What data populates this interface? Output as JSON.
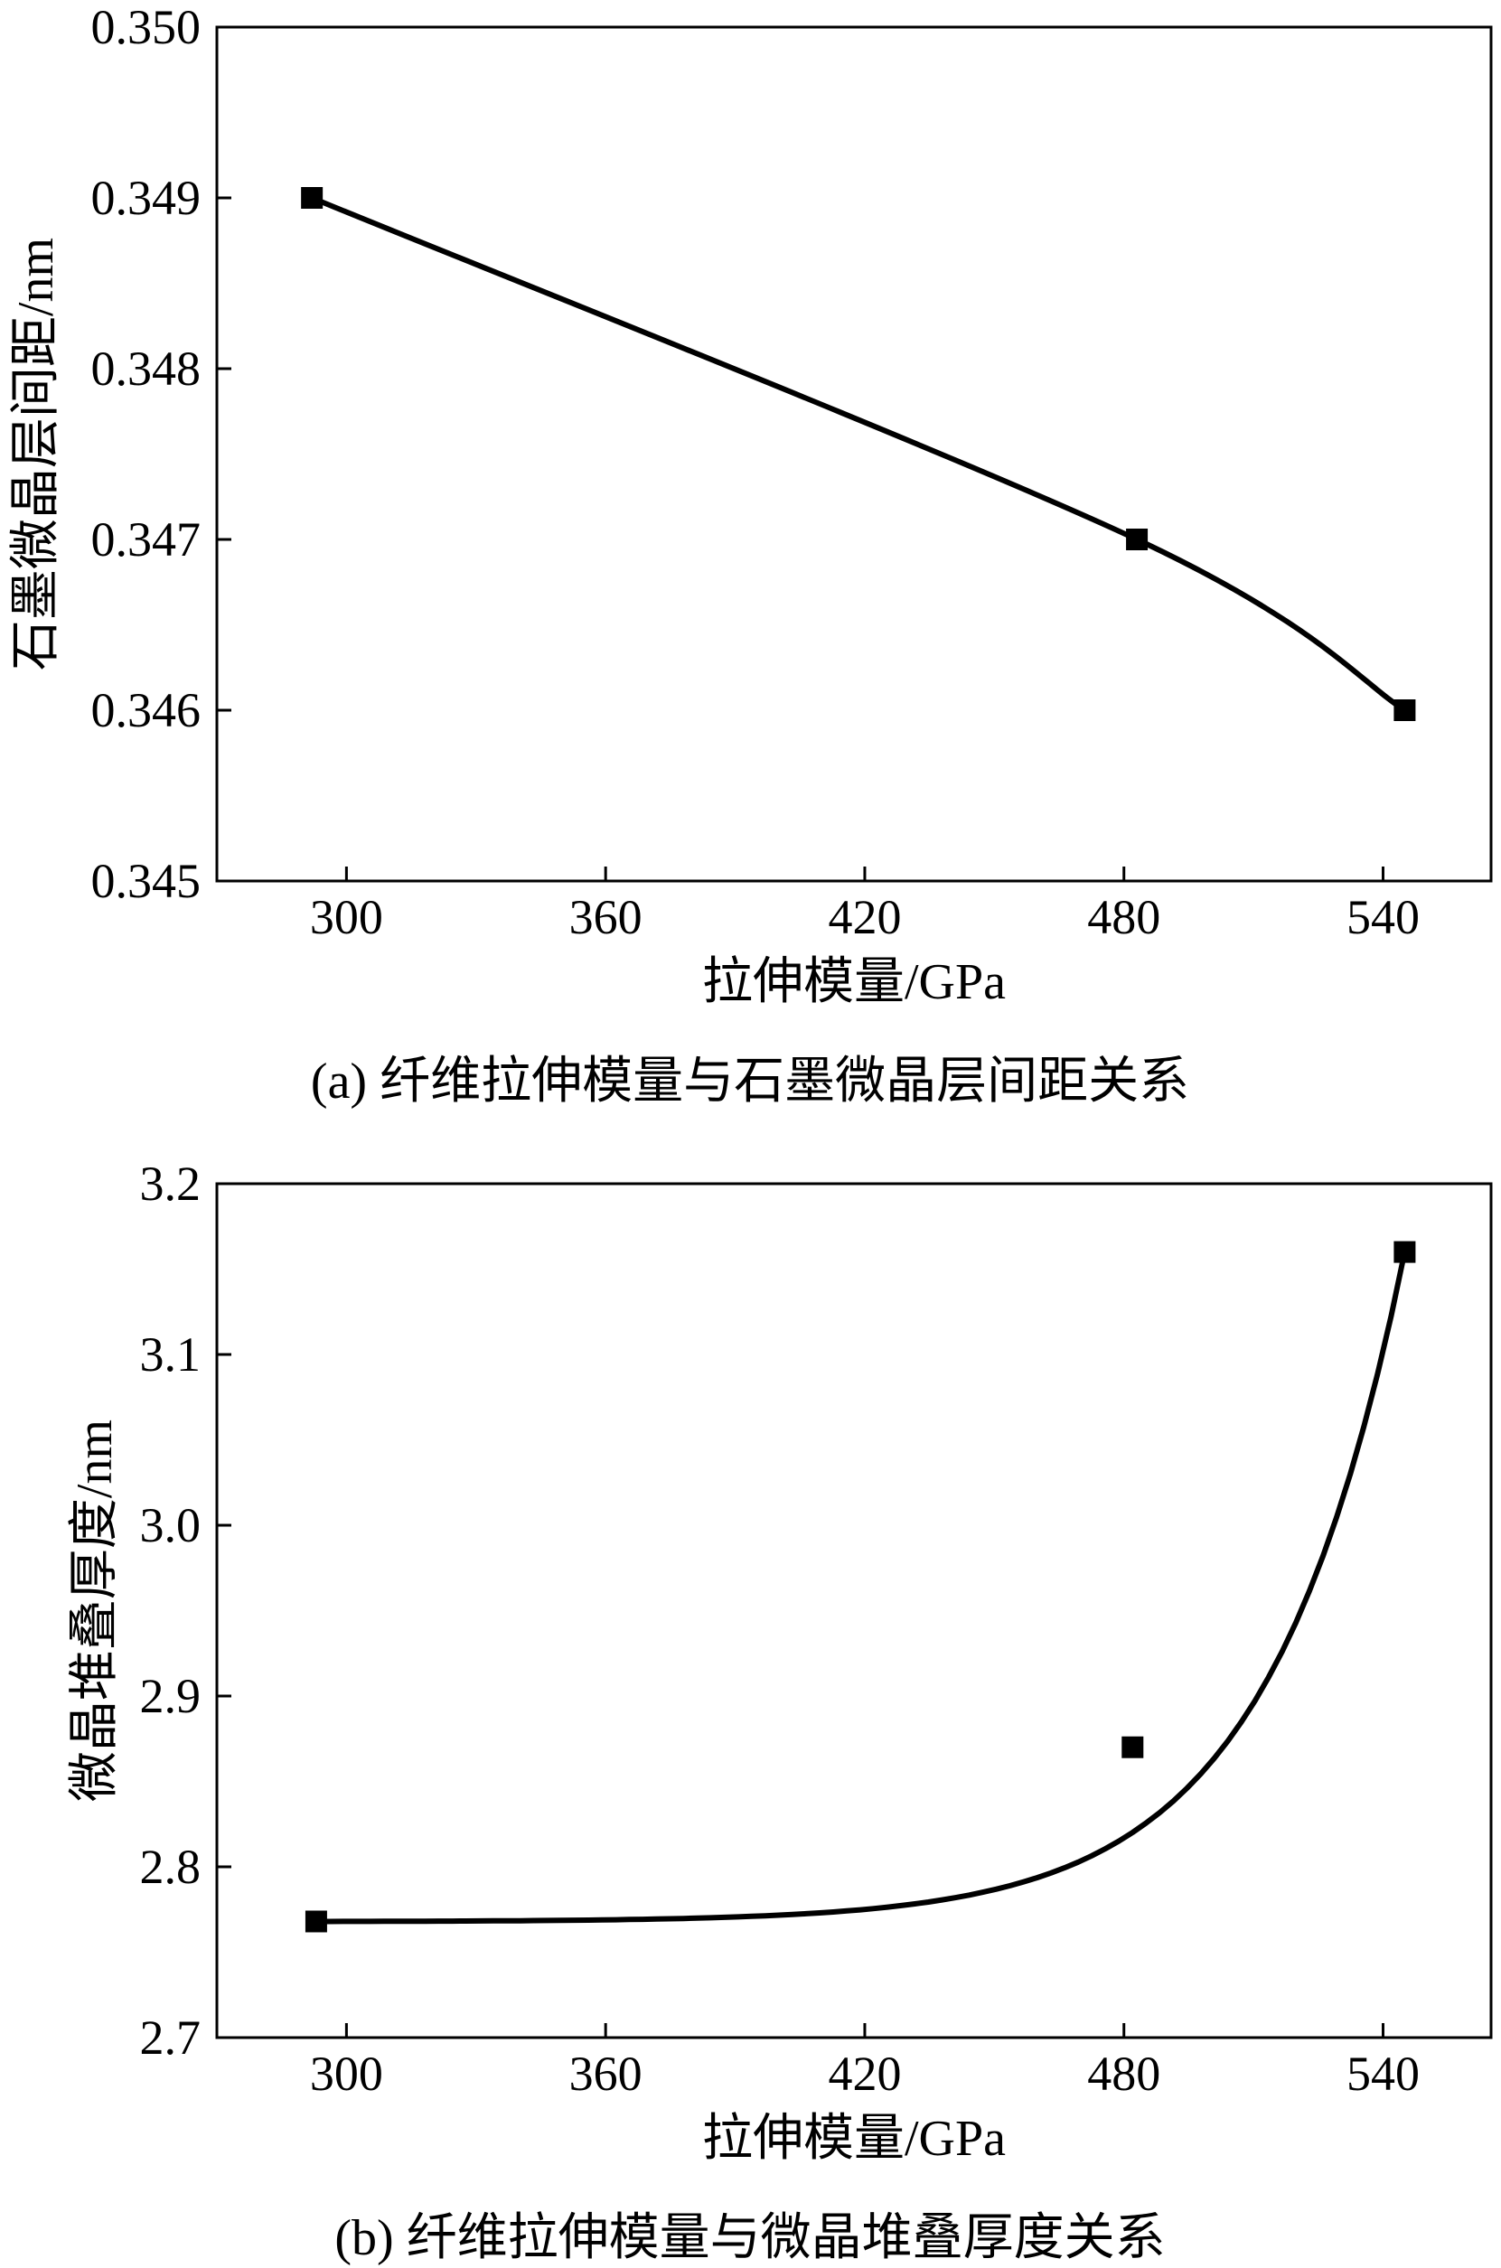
{
  "chart_data": [
    {
      "type": "line",
      "caption": "(a) 纤维拉伸模量与石墨微晶层间距关系",
      "xlabel": "拉伸模量/GPa",
      "ylabel": "石墨微晶层间距/nm",
      "xlim": [
        270,
        565
      ],
      "ylim": [
        0.345,
        0.35
      ],
      "xticks": [
        "300",
        "360",
        "420",
        "480",
        "540"
      ],
      "xtick_values": [
        300,
        360,
        420,
        480,
        540
      ],
      "yticks": [
        "0.345",
        "0.346",
        "0.347",
        "0.348",
        "0.349",
        "0.350"
      ],
      "ytick_values": [
        0.345,
        0.346,
        0.347,
        0.348,
        0.349,
        0.35
      ],
      "grid": false,
      "series": [
        {
          "x": [
            292,
            483,
            545
          ],
          "y": [
            0.349,
            0.347,
            0.346
          ],
          "marker": "square",
          "fit": "smooth"
        }
      ]
    },
    {
      "type": "line",
      "caption": "(b) 纤维拉伸模量与微晶堆叠厚度关系",
      "xlabel": "拉伸模量/GPa",
      "ylabel": "微晶堆叠厚度/nm",
      "xlim": [
        270,
        565
      ],
      "ylim": [
        2.7,
        3.2
      ],
      "xticks": [
        "300",
        "360",
        "420",
        "480",
        "540"
      ],
      "xtick_values": [
        300,
        360,
        420,
        480,
        540
      ],
      "yticks": [
        "2.7",
        "2.8",
        "2.9",
        "3.0",
        "3.1",
        "3.2"
      ],
      "ytick_values": [
        2.7,
        2.8,
        2.9,
        3.0,
        3.1,
        3.2
      ],
      "grid": false,
      "series": [
        {
          "x": [
            293,
            482,
            545
          ],
          "y": [
            2.768,
            2.87,
            3.16
          ],
          "marker": "square",
          "fit": "exponential"
        }
      ]
    }
  ]
}
